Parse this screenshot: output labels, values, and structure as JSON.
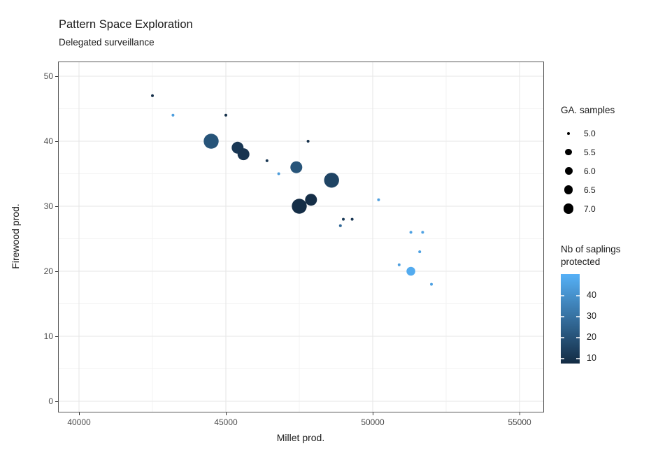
{
  "title": "Pattern Space Exploration",
  "subtitle": "Delegated surveillance",
  "chart_data": {
    "type": "scatter",
    "title": "Pattern Space Exploration",
    "subtitle": "Delegated surveillance",
    "xlabel": "Millet prod.",
    "ylabel": "Firewood prod.",
    "x_ticks": [
      "40000",
      "45000",
      "50000",
      "55000"
    ],
    "x_tick_values": [
      40000,
      45000,
      50000,
      55000
    ],
    "x_minor_values": [
      42500,
      47500,
      52500
    ],
    "y_ticks": [
      "0",
      "10",
      "20",
      "30",
      "40",
      "50"
    ],
    "y_tick_values": [
      0,
      10,
      20,
      30,
      40,
      50
    ],
    "y_minor_values": [
      5,
      15,
      25,
      35,
      45
    ],
    "xlim": [
      39286,
      55833
    ],
    "ylim": [
      -1.7,
      52.3
    ],
    "grid": "major+minor",
    "legend_position": "right",
    "points": [
      {
        "x": 42500,
        "y": 47,
        "ga_samples": 5.0,
        "saplings": 7
      },
      {
        "x": 43200,
        "y": 44,
        "ga_samples": 5.0,
        "saplings": 42
      },
      {
        "x": 44500,
        "y": 40,
        "ga_samples": 7.0,
        "saplings": 18
      },
      {
        "x": 45000,
        "y": 44,
        "ga_samples": 5.0,
        "saplings": 7
      },
      {
        "x": 45400,
        "y": 39,
        "ga_samples": 6.5,
        "saplings": 9
      },
      {
        "x": 45600,
        "y": 38,
        "ga_samples": 6.5,
        "saplings": 8
      },
      {
        "x": 46400,
        "y": 37,
        "ga_samples": 5.0,
        "saplings": 9
      },
      {
        "x": 46800,
        "y": 35,
        "ga_samples": 5.0,
        "saplings": 41
      },
      {
        "x": 47400,
        "y": 36,
        "ga_samples": 6.5,
        "saplings": 18
      },
      {
        "x": 47500,
        "y": 30,
        "ga_samples": 7.0,
        "saplings": 6
      },
      {
        "x": 47800,
        "y": 40,
        "ga_samples": 5.0,
        "saplings": 7
      },
      {
        "x": 47900,
        "y": 31,
        "ga_samples": 6.5,
        "saplings": 6
      },
      {
        "x": 48600,
        "y": 34,
        "ga_samples": 7.0,
        "saplings": 13
      },
      {
        "x": 48900,
        "y": 27,
        "ga_samples": 5.0,
        "saplings": 25
      },
      {
        "x": 49000,
        "y": 28,
        "ga_samples": 5.0,
        "saplings": 10
      },
      {
        "x": 49300,
        "y": 28,
        "ga_samples": 5.0,
        "saplings": 9
      },
      {
        "x": 50200,
        "y": 31,
        "ga_samples": 5.0,
        "saplings": 42
      },
      {
        "x": 50900,
        "y": 21,
        "ga_samples": 5.0,
        "saplings": 42
      },
      {
        "x": 51300,
        "y": 20,
        "ga_samples": 6.0,
        "saplings": 46
      },
      {
        "x": 51300,
        "y": 26,
        "ga_samples": 5.0,
        "saplings": 43
      },
      {
        "x": 51600,
        "y": 23,
        "ga_samples": 5.0,
        "saplings": 43
      },
      {
        "x": 51700,
        "y": 26,
        "ga_samples": 5.0,
        "saplings": 43
      },
      {
        "x": 52000,
        "y": 18,
        "ga_samples": 5.0,
        "saplings": 43
      }
    ],
    "size_legend": {
      "title": "GA. samples",
      "labels": [
        "5.0",
        "5.5",
        "6.0",
        "6.5",
        "7.0"
      ],
      "key_color": "#000000"
    },
    "color_legend": {
      "title": "Nb of saplings protected",
      "tick_labels": [
        "40",
        "30",
        "20",
        "10"
      ],
      "tick_values": [
        40,
        30,
        20,
        10
      ],
      "low_color": "#132B43",
      "high_color": "#56B1F7",
      "domain": [
        5,
        48
      ],
      "bar_domain": [
        50.5,
        7.8
      ]
    },
    "colors": {
      "grid_major": "#E6E6E6",
      "grid_minor": "#F3F3F3",
      "panel_border": "#595959",
      "tick_text": "#4d4d4d",
      "text": "#1a1a1a"
    }
  }
}
